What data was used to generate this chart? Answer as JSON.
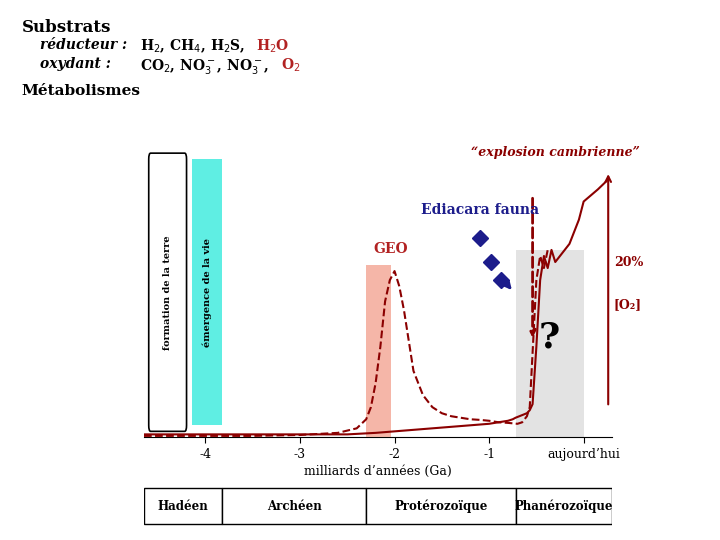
{
  "title_substrats": "Substrats",
  "reducteur_label": "réducteur : ",
  "oxydant_label": "oxydant : ",
  "metabolismes": "Métabolismes",
  "xlabel": "milliards d’années (Ga)",
  "geo_label": "GEO",
  "ediacara_label": "Ediacara fauna",
  "explosion_label": "“explosion cambrienne”",
  "o2_label": "[O₂]",
  "o2_pct": "20%",
  "question_mark": "?",
  "formation_label": "formation de la terre",
  "emergence_label": "émergence de la vie",
  "tick_labels": [
    "-4",
    "-3",
    "-2",
    "-1",
    "aujourd’hui"
  ],
  "tick_positions": [
    -4,
    -3,
    -2,
    -1,
    0
  ],
  "era_labels": [
    "Hadéen",
    "Archéen",
    "Protérozoïque",
    "Phanérozoïque"
  ],
  "dark_red": "#8B0000",
  "red_color": "#B22222",
  "teal": "#4DEDE0",
  "salmon": "#F0907A",
  "gray_box": "#CCCCCC",
  "dark_blue": "#1C1C8B",
  "navy": "#1C1C8B",
  "black": "#000000",
  "white": "#FFFFFF"
}
